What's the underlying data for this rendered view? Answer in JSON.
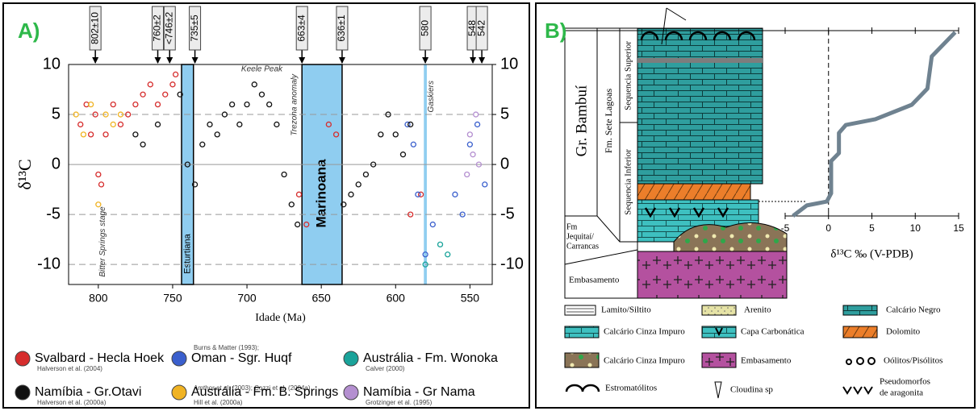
{
  "chart_data": [
    {
      "type": "scatter",
      "title": "A)",
      "x_label": "Idade (Ma)",
      "y_label": "δ¹³C",
      "xlim": [
        820,
        535
      ],
      "ylim": [
        -12,
        10
      ],
      "xticks": [
        800,
        750,
        700,
        650,
        600,
        550
      ],
      "yticks": [
        10,
        5,
        0,
        -5,
        -10
      ],
      "grid": true,
      "markers": [
        {
          "value": 802,
          "label": "802±10"
        },
        {
          "value": 760,
          "label": "760±2"
        },
        {
          "value": 752,
          "label": "<746±2"
        },
        {
          "value": 735,
          "label": "735±5"
        },
        {
          "value": 663,
          "label": "663±4"
        },
        {
          "value": 636,
          "label": "636±1"
        },
        {
          "value": 580,
          "label": "580"
        },
        {
          "value": 548,
          "label": "548"
        },
        {
          "value": 542,
          "label": "542"
        }
      ],
      "bands": [
        {
          "label": "Esturtiana",
          "range": [
            744,
            736
          ]
        },
        {
          "label": "Marinoana",
          "range": [
            663,
            636
          ]
        },
        {
          "label": "",
          "range": [
            581,
            579
          ]
        }
      ],
      "annotations": [
        "Keele Peak",
        "Trezona anomaly",
        "Gaskiers",
        "Bitter Springs stage"
      ],
      "series": [
        {
          "name": "Svalbard - Hecla Hoek",
          "citation": [
            "Halverson et al. (2004)"
          ],
          "color": "#d62d2d",
          "x": [
            812,
            808,
            805,
            802,
            800,
            798,
            795,
            790,
            785,
            780,
            775,
            770,
            765,
            760,
            755,
            750,
            748,
            665,
            660,
            645,
            640,
            590,
            583
          ],
          "values": [
            4,
            6,
            3,
            5,
            -1,
            -2,
            3,
            6,
            4,
            5,
            6,
            7,
            8,
            6,
            7,
            8,
            9,
            -3,
            -6,
            4,
            3,
            -5,
            -3
          ]
        },
        {
          "name": "Oman - Sgr. Huqf",
          "citation": [
            "Burns & Matter (1993);",
            "Amthor et al. (2003); Cozzi et al. (2004a)"
          ],
          "color": "#3a5fcd",
          "x": [
            592,
            588,
            585,
            580,
            575,
            560,
            555,
            550,
            545,
            540
          ],
          "values": [
            4,
            2,
            -3,
            -9,
            -6,
            -3,
            -5,
            2,
            4,
            -2
          ]
        },
        {
          "name": "Austrália - Fm. Wonoka",
          "citation": [
            "Calver (2000)"
          ],
          "color": "#1aa39a",
          "x": [
            580,
            570,
            565
          ],
          "values": [
            -10,
            -8,
            -9
          ]
        },
        {
          "name": "Namíbia - Gr.Otavi",
          "citation": [
            "Halverson et al. (2000a)"
          ],
          "color": "#111111",
          "x": [
            775,
            770,
            760,
            745,
            740,
            735,
            730,
            725,
            720,
            715,
            710,
            705,
            700,
            695,
            690,
            685,
            680,
            675,
            670,
            666,
            635,
            630,
            625,
            620,
            615,
            610,
            605,
            600,
            595,
            590
          ],
          "values": [
            3,
            2,
            4,
            7,
            0,
            -2,
            2,
            4,
            3,
            5,
            6,
            4,
            6,
            8,
            7,
            6,
            4,
            -1,
            -4,
            -6,
            -4,
            -3,
            -2,
            -1,
            0,
            3,
            5,
            3,
            1,
            4
          ]
        },
        {
          "name": "Austrália - Fm. B. Springs",
          "citation": [
            "Hill et al. (2000a)"
          ],
          "color": "#f0b323",
          "x": [
            815,
            810,
            805,
            800,
            795,
            790,
            785
          ],
          "values": [
            5,
            3,
            6,
            -4,
            5,
            4,
            5
          ]
        },
        {
          "name": "Namíbia - Gr Nama",
          "citation": [
            "Grotzinger et al. (1995)"
          ],
          "color": "#b48fd0",
          "x": [
            552,
            550,
            548,
            546,
            544
          ],
          "values": [
            -1,
            3,
            1,
            5,
            0
          ]
        }
      ]
    },
    {
      "type": "line",
      "title": "B)",
      "x_label": "δ¹³C ‰ (V-PDB)",
      "xlim": [
        -5,
        15
      ],
      "ylim": [
        0,
        100
      ],
      "xticks": [
        -5,
        0,
        5,
        10,
        15
      ],
      "vline": 0,
      "series": [
        {
          "color": "#6f8290",
          "x": [
            -4.1,
            -2.5,
            -0.2,
            0.3,
            0.3,
            1.2,
            1.2,
            2,
            5.4,
            9.6,
            11.4,
            11.9,
            14.6
          ],
          "values": [
            0,
            5.7,
            7.8,
            12.2,
            29.6,
            33.9,
            44.8,
            49.1,
            52.2,
            60,
            68.7,
            86.1,
            99.1
          ]
        }
      ]
    }
  ],
  "column": {
    "labels": [
      "Gr. Bambuí",
      "Fm. Sete Lagoas",
      "Sequencia Superior",
      "Sequencia Inferior",
      [
        "Fm",
        "Jequitaí/",
        "Carrancas"
      ],
      "Embasamento"
    ],
    "legend": [
      "Lamito/Siltito",
      "Arenito",
      "Calcário Negro",
      "Calcário Cinza Impuro",
      "Capa Carbonática",
      "Dolomito",
      "Calcário Cinza Impuro",
      "Embasamento",
      "Oólitos/Pisólitos",
      "Estromatólitos",
      "Cloudina sp",
      [
        "Pseudomorfos",
        "de aragonita"
      ]
    ]
  }
}
